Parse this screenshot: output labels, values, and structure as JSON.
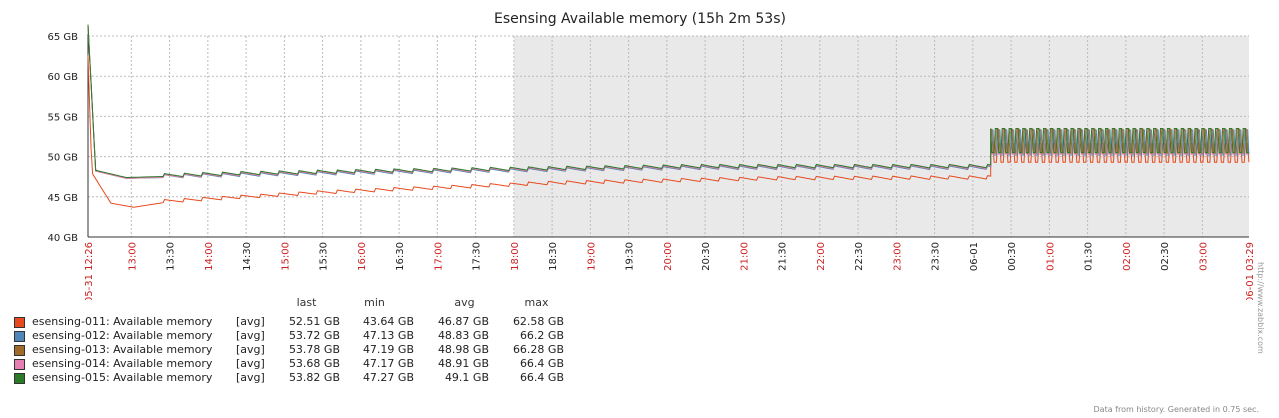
{
  "chart_data": {
    "type": "line",
    "title": "Esensing Available memory (15h 2m 53s)",
    "y_unit": "GB",
    "ylim": [
      40,
      65
    ],
    "y_ticks": [
      "40 GB",
      "45 GB",
      "50 GB",
      "55 GB",
      "60 GB",
      "65 GB"
    ],
    "x_start_label": "05-31 12:26",
    "x_end_label": "06-01 03:29",
    "x_ticks": [
      {
        "label": "13:00",
        "red": true
      },
      {
        "label": "13:30",
        "red": false
      },
      {
        "label": "14:00",
        "red": true
      },
      {
        "label": "14:30",
        "red": false
      },
      {
        "label": "15:00",
        "red": true
      },
      {
        "label": "15:30",
        "red": false
      },
      {
        "label": "16:00",
        "red": true
      },
      {
        "label": "16:30",
        "red": false
      },
      {
        "label": "17:00",
        "red": true
      },
      {
        "label": "17:30",
        "red": false
      },
      {
        "label": "18:00",
        "red": true
      },
      {
        "label": "18:30",
        "red": false
      },
      {
        "label": "19:00",
        "red": true
      },
      {
        "label": "19:30",
        "red": false
      },
      {
        "label": "20:00",
        "red": true
      },
      {
        "label": "20:30",
        "red": false
      },
      {
        "label": "21:00",
        "red": true
      },
      {
        "label": "21:30",
        "red": false
      },
      {
        "label": "22:00",
        "red": true
      },
      {
        "label": "22:30",
        "red": false
      },
      {
        "label": "23:00",
        "red": true
      },
      {
        "label": "23:30",
        "red": false
      },
      {
        "label": "06-01",
        "red": false
      },
      {
        "label": "00:30",
        "red": false
      },
      {
        "label": "01:00",
        "red": true
      },
      {
        "label": "01:30",
        "red": false
      },
      {
        "label": "02:00",
        "red": true
      },
      {
        "label": "02:30",
        "red": false
      },
      {
        "label": "03:00",
        "red": true
      }
    ],
    "shaded_region": {
      "from": "18:00",
      "to": "03:29"
    },
    "grid": true,
    "series": [
      {
        "name": "esensing-011: Available memory",
        "color": "#e64a1e",
        "points": [
          [
            0,
            62.6
          ],
          [
            0.05,
            48
          ],
          [
            0.3,
            44.2
          ],
          [
            0.6,
            43.7
          ],
          [
            1.0,
            44.3
          ],
          [
            3,
            45.4
          ],
          [
            6,
            46.6
          ],
          [
            9,
            47.2
          ],
          [
            11.8,
            47.3
          ],
          [
            11.8,
            50
          ]
        ],
        "osc_low": 49.3,
        "osc_high": 51.6
      },
      {
        "name": "esensing-012: Available memory",
        "color": "#4f86b8",
        "points": [
          [
            0,
            66.2
          ],
          [
            0.1,
            48.2
          ],
          [
            0.5,
            47.3
          ],
          [
            2,
            47.6
          ],
          [
            5,
            48.1
          ],
          [
            8,
            48.5
          ],
          [
            11.8,
            48.5
          ],
          [
            11.8,
            51
          ]
        ],
        "osc_low": 50.2,
        "osc_high": 53.3
      },
      {
        "name": "esensing-013: Available memory",
        "color": "#a06a2a",
        "points": [
          [
            0,
            66.3
          ],
          [
            0.1,
            48.2
          ],
          [
            0.5,
            47.3
          ],
          [
            2,
            47.7
          ],
          [
            5,
            48.2
          ],
          [
            8,
            48.6
          ],
          [
            11.8,
            48.6
          ],
          [
            11.8,
            51
          ]
        ],
        "osc_low": 50.4,
        "osc_high": 53.4
      },
      {
        "name": "esensing-014: Available memory",
        "color": "#e77fb5",
        "points": [
          [
            0,
            66.4
          ],
          [
            0.1,
            48.2
          ],
          [
            0.5,
            47.3
          ],
          [
            2,
            47.7
          ],
          [
            5,
            48.2
          ],
          [
            8,
            48.6
          ],
          [
            11.8,
            48.6
          ],
          [
            11.8,
            51
          ]
        ],
        "osc_low": 50.3,
        "osc_high": 53.3
      },
      {
        "name": "esensing-015: Available memory",
        "color": "#2a7a2a",
        "points": [
          [
            0,
            66.4
          ],
          [
            0.1,
            48.3
          ],
          [
            0.5,
            47.4
          ],
          [
            2,
            47.8
          ],
          [
            5,
            48.3
          ],
          [
            8,
            48.7
          ],
          [
            11.8,
            48.7
          ],
          [
            11.8,
            51.2
          ]
        ],
        "osc_low": 50.5,
        "osc_high": 53.5
      }
    ]
  },
  "legend": {
    "headers": {
      "last": "last",
      "min": "min",
      "avg": "avg",
      "max": "max"
    },
    "rows": [
      {
        "name": "esensing-011: Available memory",
        "func": "[avg]",
        "color": "#e64a1e",
        "last": "52.51 GB",
        "min": "43.64 GB",
        "avg": "46.87 GB",
        "max": "62.58 GB"
      },
      {
        "name": "esensing-012: Available memory",
        "func": "[avg]",
        "color": "#4f86b8",
        "last": "53.72 GB",
        "min": "47.13 GB",
        "avg": "48.83 GB",
        "max": "66.2 GB"
      },
      {
        "name": "esensing-013: Available memory",
        "func": "[avg]",
        "color": "#a06a2a",
        "last": "53.78 GB",
        "min": "47.19 GB",
        "avg": "48.98 GB",
        "max": "66.28 GB"
      },
      {
        "name": "esensing-014: Available memory",
        "func": "[avg]",
        "color": "#e77fb5",
        "last": "53.68 GB",
        "min": "47.17 GB",
        "avg": "48.91 GB",
        "max": "66.4 GB"
      },
      {
        "name": "esensing-015: Available memory",
        "func": "[avg]",
        "color": "#2a7a2a",
        "last": "53.82 GB",
        "min": "47.27 GB",
        "avg": "49.1 GB",
        "max": "66.4 GB"
      }
    ]
  },
  "footer": "Data from history. Generated in 0.75 sec.",
  "side_text": "http://www.zabbix.com"
}
